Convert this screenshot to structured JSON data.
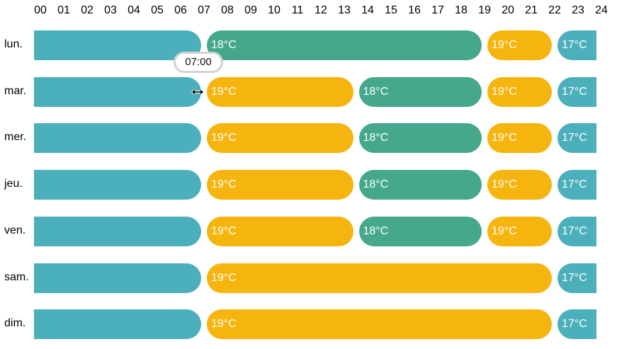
{
  "hours": [
    "00",
    "01",
    "02",
    "03",
    "04",
    "05",
    "06",
    "07",
    "08",
    "09",
    "10",
    "11",
    "12",
    "13",
    "14",
    "15",
    "16",
    "17",
    "18",
    "19",
    "20",
    "21",
    "22",
    "23",
    "24"
  ],
  "days": [
    {
      "label": "lun.",
      "blocks": [
        {
          "start": 0,
          "end": 7,
          "mode": "standby",
          "text": ""
        },
        {
          "start": 7,
          "end": 19,
          "mode": "eco",
          "text": "18°C"
        },
        {
          "start": 19,
          "end": 22,
          "mode": "comfort",
          "text": "19°C"
        },
        {
          "start": 22,
          "end": 24,
          "mode": "standby",
          "text": "17°C"
        }
      ]
    },
    {
      "label": "mar.",
      "blocks": [
        {
          "start": 0,
          "end": 7,
          "mode": "standby",
          "text": ""
        },
        {
          "start": 7,
          "end": 13.5,
          "mode": "comfort",
          "text": "19°C"
        },
        {
          "start": 13.5,
          "end": 19,
          "mode": "eco",
          "text": "18°C"
        },
        {
          "start": 19,
          "end": 22,
          "mode": "comfort",
          "text": "19°C"
        },
        {
          "start": 22,
          "end": 24,
          "mode": "standby",
          "text": "17°C"
        }
      ]
    },
    {
      "label": "mer.",
      "blocks": [
        {
          "start": 0,
          "end": 7,
          "mode": "standby",
          "text": ""
        },
        {
          "start": 7,
          "end": 13.5,
          "mode": "comfort",
          "text": "19°C"
        },
        {
          "start": 13.5,
          "end": 19,
          "mode": "eco",
          "text": "18°C"
        },
        {
          "start": 19,
          "end": 22,
          "mode": "comfort",
          "text": "19°C"
        },
        {
          "start": 22,
          "end": 24,
          "mode": "standby",
          "text": "17°C"
        }
      ]
    },
    {
      "label": "jeu.",
      "blocks": [
        {
          "start": 0,
          "end": 7,
          "mode": "standby",
          "text": ""
        },
        {
          "start": 7,
          "end": 13.5,
          "mode": "comfort",
          "text": "19°C"
        },
        {
          "start": 13.5,
          "end": 19,
          "mode": "eco",
          "text": "18°C"
        },
        {
          "start": 19,
          "end": 22,
          "mode": "comfort",
          "text": "19°C"
        },
        {
          "start": 22,
          "end": 24,
          "mode": "standby",
          "text": "17°C"
        }
      ]
    },
    {
      "label": "ven.",
      "blocks": [
        {
          "start": 0,
          "end": 7,
          "mode": "standby",
          "text": ""
        },
        {
          "start": 7,
          "end": 13.5,
          "mode": "comfort",
          "text": "19°C"
        },
        {
          "start": 13.5,
          "end": 19,
          "mode": "eco",
          "text": "18°C"
        },
        {
          "start": 19,
          "end": 22,
          "mode": "comfort",
          "text": "19°C"
        },
        {
          "start": 22,
          "end": 24,
          "mode": "standby",
          "text": "17°C"
        }
      ]
    },
    {
      "label": "sam.",
      "blocks": [
        {
          "start": 0,
          "end": 7,
          "mode": "standby",
          "text": ""
        },
        {
          "start": 7,
          "end": 22,
          "mode": "comfort",
          "text": "19°C"
        },
        {
          "start": 22,
          "end": 24,
          "mode": "standby",
          "text": "17°C"
        }
      ]
    },
    {
      "label": "dim.",
      "blocks": [
        {
          "start": 0,
          "end": 7,
          "mode": "standby",
          "text": ""
        },
        {
          "start": 7,
          "end": 22,
          "mode": "comfort",
          "text": "19°C"
        },
        {
          "start": 22,
          "end": 24,
          "mode": "standby",
          "text": "17°C"
        }
      ]
    }
  ],
  "colors": {
    "standby": "#4bb0bb",
    "eco": "#45a88c",
    "comfort": "#f6b40e"
  },
  "tooltip": {
    "text": "07:00"
  },
  "cursor": {
    "icon": "horizontal-resize-icon"
  }
}
